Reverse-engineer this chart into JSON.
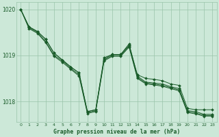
{
  "xlabel": "Graphe pression niveau de la mer (hPa)",
  "ylim": [
    1017.55,
    1020.15
  ],
  "xlim": [
    -0.5,
    23.5
  ],
  "yticks": [
    1018,
    1019,
    1020
  ],
  "xticks": [
    0,
    1,
    2,
    3,
    4,
    5,
    6,
    7,
    8,
    9,
    10,
    11,
    12,
    13,
    14,
    15,
    16,
    17,
    18,
    19,
    20,
    21,
    22,
    23
  ],
  "bg_color": "#cce8d8",
  "grid_color": "#99c4aa",
  "line_color": "#1a5c2a",
  "marker_color": "#1a5c2a",
  "lines": [
    [
      1020.0,
      1019.62,
      1019.52,
      1019.35,
      1019.05,
      1018.9,
      1018.75,
      1018.62,
      1017.78,
      1017.82,
      1018.92,
      1019.02,
      1019.02,
      1019.22,
      1018.58,
      1018.5,
      1018.48,
      1018.45,
      1018.38,
      1018.35,
      1017.85,
      1017.82,
      1017.82,
      1017.82
    ],
    [
      1020.0,
      1019.62,
      1019.52,
      1019.35,
      1019.05,
      1018.9,
      1018.75,
      1018.62,
      1017.78,
      1017.82,
      1018.95,
      1019.02,
      1019.02,
      1019.25,
      1018.55,
      1018.42,
      1018.4,
      1018.38,
      1018.32,
      1018.28,
      1017.8,
      1017.78,
      1017.72,
      1017.72
    ],
    [
      1020.0,
      1019.6,
      1019.5,
      1019.3,
      1019.0,
      1018.88,
      1018.72,
      1018.58,
      1017.76,
      1017.8,
      1018.9,
      1019.0,
      1019.0,
      1019.2,
      1018.52,
      1018.4,
      1018.38,
      1018.35,
      1018.3,
      1018.25,
      1017.78,
      1017.75,
      1017.7,
      1017.7
    ],
    [
      1020.0,
      1019.58,
      1019.48,
      1019.28,
      1018.98,
      1018.85,
      1018.7,
      1018.55,
      1017.74,
      1017.78,
      1018.88,
      1018.98,
      1018.98,
      1019.18,
      1018.5,
      1018.38,
      1018.36,
      1018.33,
      1018.28,
      1018.23,
      1017.76,
      1017.73,
      1017.68,
      1017.68
    ]
  ]
}
